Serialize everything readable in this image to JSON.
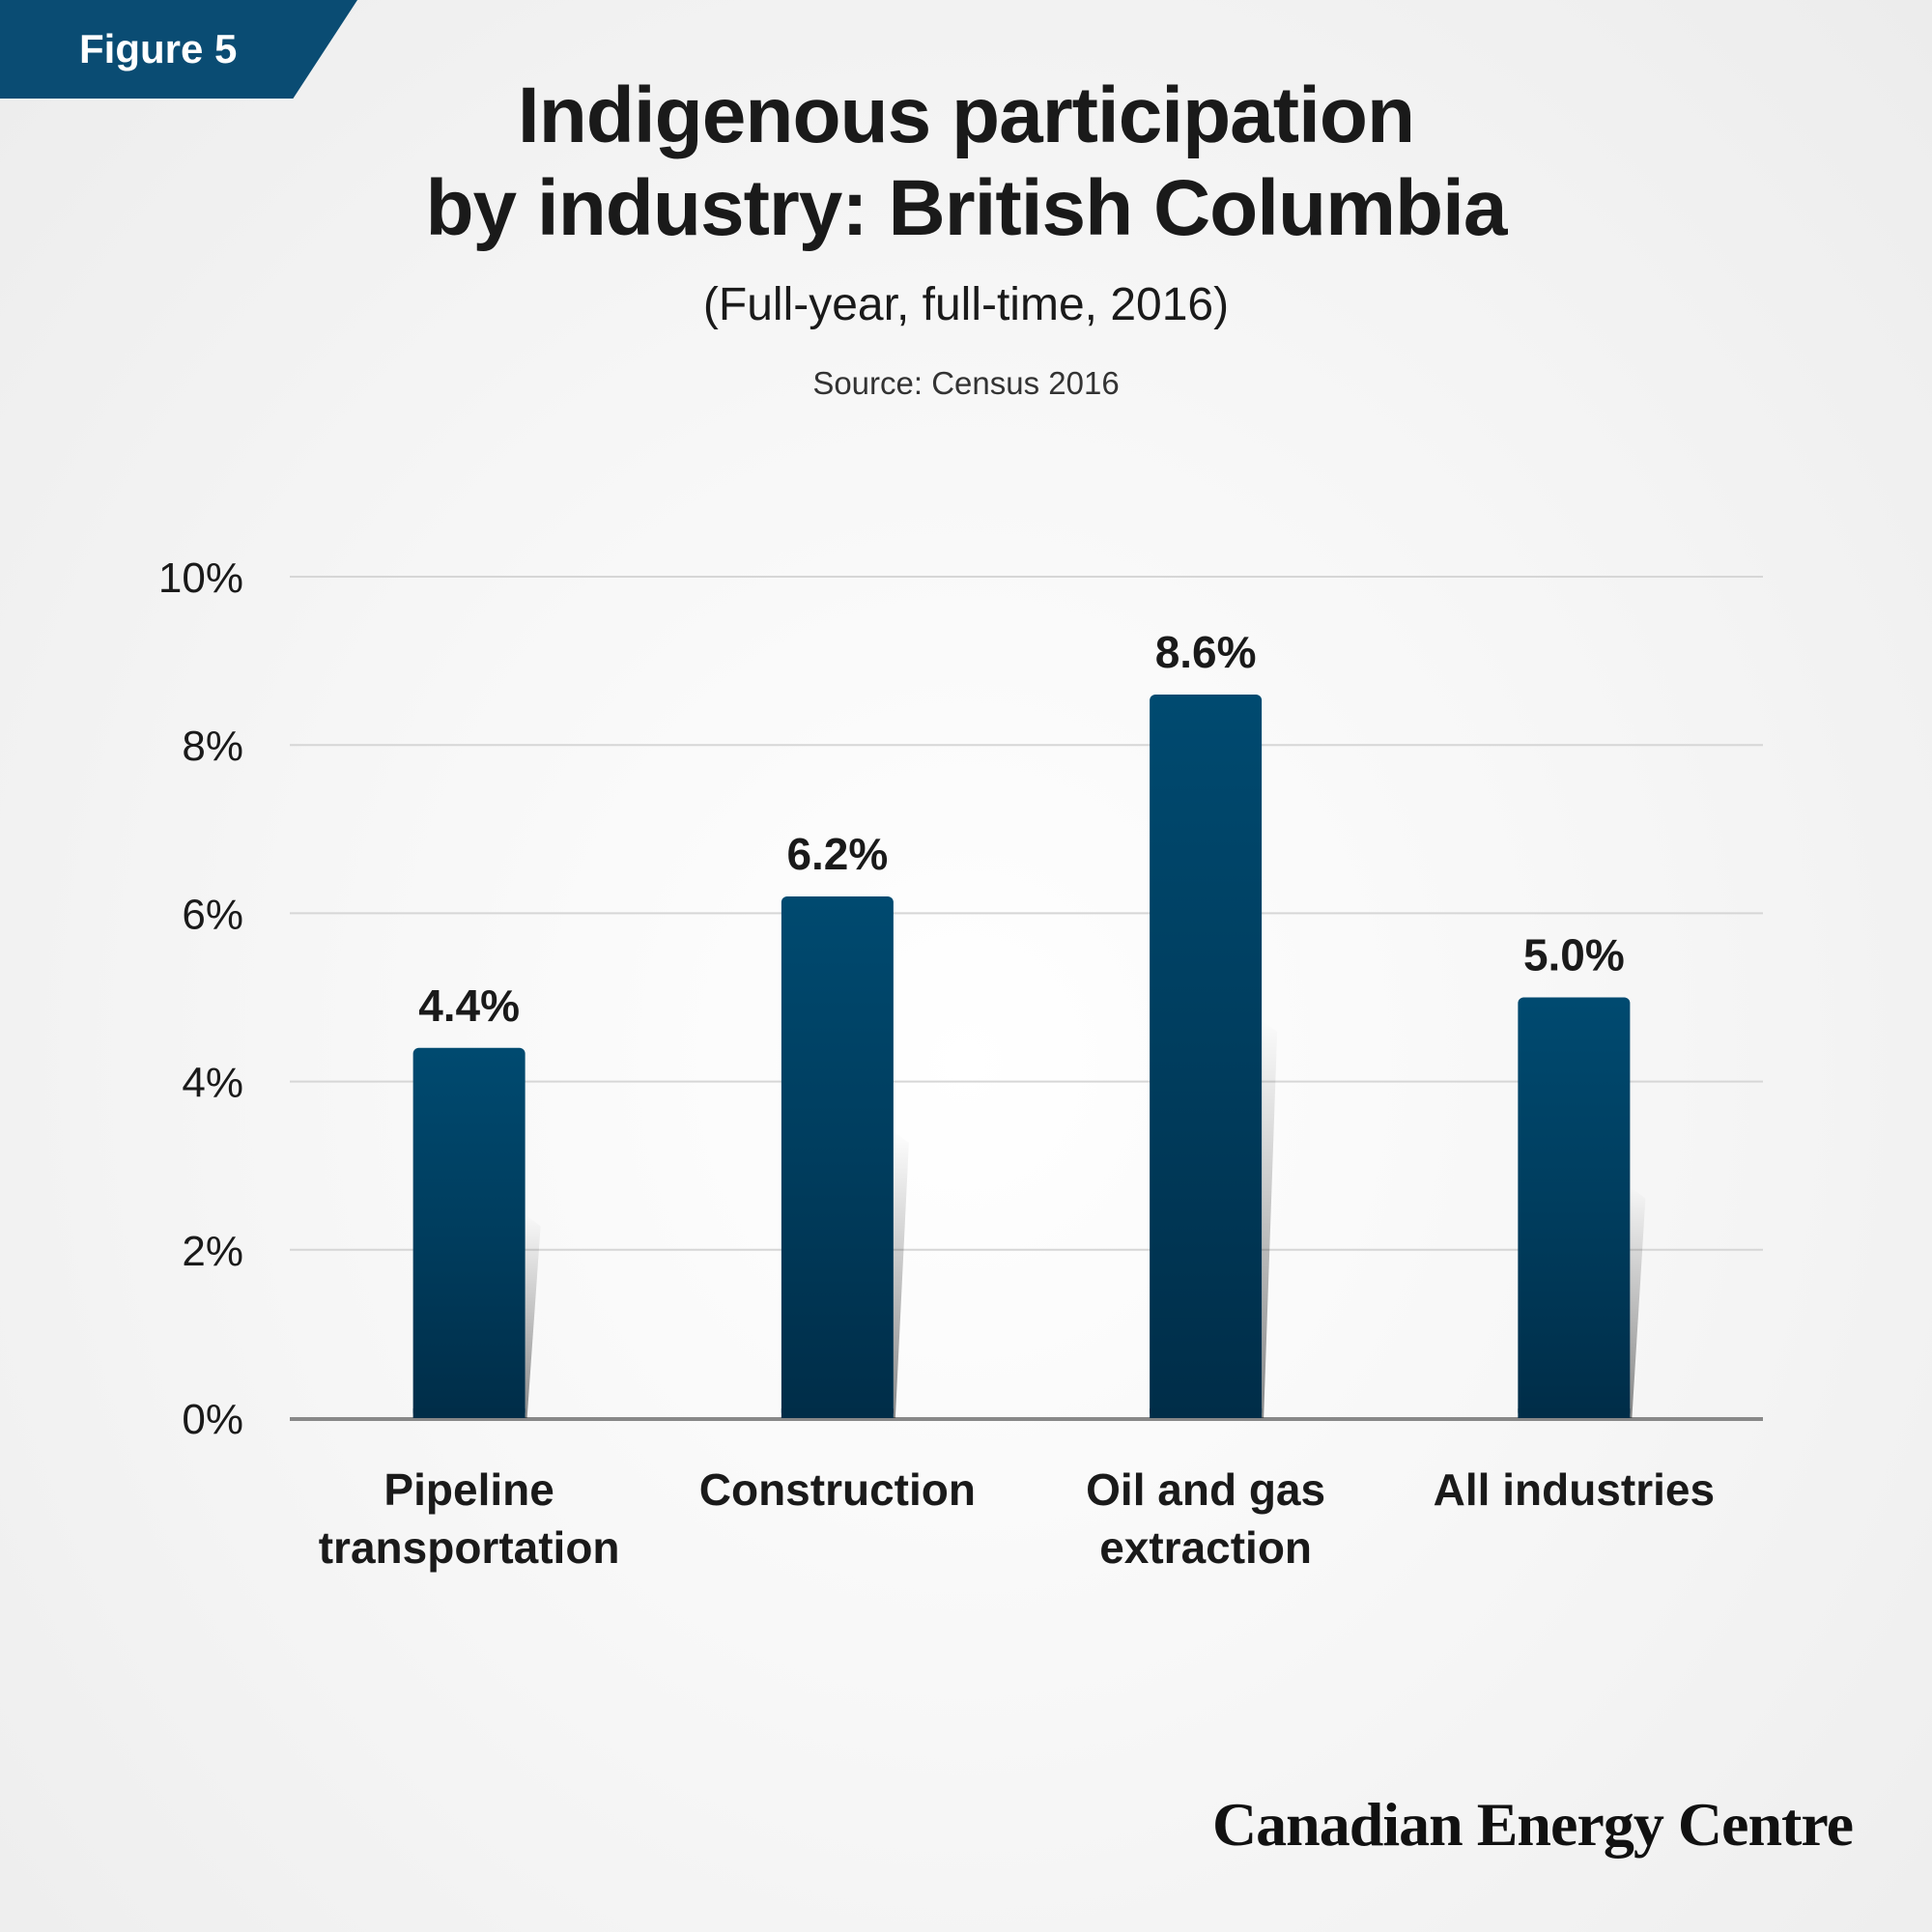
{
  "figure_label": "Figure 5",
  "title_line1": "Indigenous participation",
  "title_line2": "by industry: British Columbia",
  "subtitle": "(Full-year, full-time, 2016)",
  "source": "Source: Census 2016",
  "brand": "Canadian Energy Centre",
  "colors": {
    "bar": "#004a70",
    "bar_dark": "#002d48",
    "accent": "#0a4c73",
    "gridline": "#d6d6d6",
    "axis": "#888888"
  },
  "chart_data": {
    "type": "bar",
    "categories": [
      [
        "Pipeline",
        "transportation"
      ],
      [
        "Construction"
      ],
      [
        "Oil and gas",
        "extraction"
      ],
      [
        "All industries"
      ]
    ],
    "values": [
      4.4,
      6.2,
      8.6,
      5.0
    ],
    "data_labels": [
      "4.4%",
      "6.2%",
      "8.6%",
      "5.0%"
    ],
    "y_ticks": [
      0,
      2,
      4,
      6,
      8,
      10
    ],
    "y_tick_labels": [
      "0%",
      "2%",
      "4%",
      "6%",
      "8%",
      "10%"
    ],
    "ylim": [
      0,
      10
    ],
    "grid": true,
    "legend": "none"
  }
}
